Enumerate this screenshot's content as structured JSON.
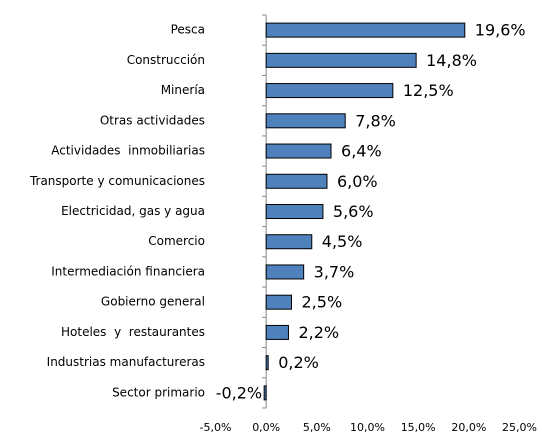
{
  "chart_data": {
    "type": "bar",
    "orientation": "horizontal",
    "categories": [
      "Pesca",
      "Construcción",
      "Minería",
      "Otras actividades",
      "Actividades  inmobiliarias",
      "Transporte y comunicaciones",
      "Electricidad, gas y agua",
      "Comercio",
      "Intermediación financiera",
      "Gobierno general",
      "Hoteles  y  restaurantes",
      "Industrias manufactureras",
      "Sector primario"
    ],
    "values": [
      19.6,
      14.8,
      12.5,
      7.8,
      6.4,
      6.0,
      5.6,
      4.5,
      3.7,
      2.5,
      2.2,
      0.2,
      -0.2
    ],
    "value_labels": [
      "19,6%",
      "14,8%",
      "12,5%",
      "7,8%",
      "6,4%",
      "6,0%",
      "5,6%",
      "4,5%",
      "3,7%",
      "2,5%",
      "2,2%",
      "0,2%",
      "-0,2%"
    ],
    "color": "#4f81bd",
    "xlim": [
      -5,
      25
    ],
    "xticks": [
      {
        "value": -5,
        "label": "-5,0%"
      },
      {
        "value": 0,
        "label": "0,0%"
      },
      {
        "value": 5,
        "label": "5,0%"
      },
      {
        "value": 10,
        "label": "10,0%"
      },
      {
        "value": 15,
        "label": "15,0%"
      },
      {
        "value": 20,
        "label": "20,0%"
      },
      {
        "value": 25,
        "label": "25,0%"
      }
    ],
    "grid": false
  }
}
